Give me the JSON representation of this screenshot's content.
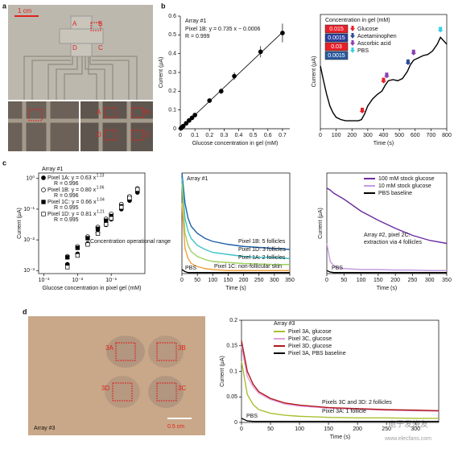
{
  "panel_labels": [
    "a",
    "b",
    "c",
    "d"
  ],
  "photos": [
    {
      "scale_label": "1 cm",
      "labels": [
        "A",
        "B",
        "D",
        "C",
        "A",
        "B",
        "D",
        "C"
      ]
    },
    {
      "labels": [
        "3A",
        "3B",
        "3D",
        "3C"
      ],
      "caption": "Array #3",
      "scale_label": "0.5 cm"
    }
  ],
  "watermark": {
    "brand": "电子发烧友",
    "url": "www.elecfans.com"
  },
  "chart_data": [
    {
      "type": "scatter",
      "annotations": [
        "Array #1",
        "Pixel 1B: y = 0.735 x − 0.0006",
        "R = 0.999"
      ],
      "x": [
        0.005,
        0.01,
        0.02,
        0.04,
        0.06,
        0.08,
        0.1,
        0.2,
        0.28,
        0.37,
        0.55,
        0.7
      ],
      "values": [
        0.003,
        0.007,
        0.014,
        0.029,
        0.044,
        0.058,
        0.073,
        0.15,
        0.2,
        0.28,
        0.41,
        0.51
      ],
      "errors": [
        0,
        0,
        0,
        0,
        0,
        0,
        0.005,
        0.01,
        0.015,
        0.02,
        0.03,
        0.05
      ],
      "color": "#000000",
      "fit": {
        "slope": 0.735,
        "intercept": -0.0006
      },
      "xlim": [
        0,
        0.75
      ],
      "ylim": [
        0,
        0.6
      ],
      "xticks": [
        0,
        0.1,
        0.2,
        0.3,
        0.4,
        0.5,
        0.6,
        0.7
      ],
      "yticks": [
        0,
        0.1,
        0.2,
        0.3,
        0.4,
        0.5,
        0.6
      ],
      "xlabel": "Glucose concentration in gel (mM)",
      "ylabel": "Current (μA)"
    },
    {
      "type": "line",
      "x": [
        0,
        20,
        40,
        60,
        80,
        100,
        130,
        160,
        200,
        240,
        260,
        280,
        300,
        330,
        360,
        390,
        410,
        430,
        460,
        490,
        520,
        550,
        570,
        590,
        620,
        650,
        680,
        710,
        740,
        760,
        780,
        800
      ],
      "values": [
        0.55,
        0.42,
        0.3,
        0.2,
        0.14,
        0.1,
        0.08,
        0.07,
        0.07,
        0.07,
        0.08,
        0.13,
        0.2,
        0.26,
        0.3,
        0.33,
        0.38,
        0.42,
        0.43,
        0.42,
        0.44,
        0.5,
        0.56,
        0.6,
        0.62,
        0.64,
        0.65,
        0.68,
        0.74,
        0.8,
        0.77,
        0.74
      ],
      "color": "#000000",
      "xlim": [
        0,
        800
      ],
      "ylim": [
        0,
        1
      ],
      "xticks": [
        0,
        100,
        200,
        300,
        400,
        500,
        600,
        700,
        800
      ],
      "xlabel": "Time (s)",
      "ylabel": "Current (μA)",
      "legend_title": "Concentration in gel (mM)",
      "concentrations": [
        0.015,
        0.0015,
        0.03,
        0.0015
      ],
      "concentration_colors": [
        "#e8202a",
        "#2a3f9e",
        "#e8202a",
        "#2a5a9e"
      ],
      "legend_items": [
        {
          "name": "Glucose",
          "color": "#e8202a"
        },
        {
          "name": "Acetaminophen",
          "color": "#2c4d9a"
        },
        {
          "name": "Ascorbic acid",
          "color": "#8a3fb0"
        },
        {
          "name": "PBS",
          "color": "#35d0e8"
        }
      ],
      "markers": [
        {
          "x": 265,
          "color": "#e8202a"
        },
        {
          "x": 400,
          "color": "#e8202a"
        },
        {
          "x": 420,
          "color": "#8a3fb0"
        },
        {
          "x": 555,
          "color": "#2c4d9a"
        },
        {
          "x": 590,
          "color": "#8a3fb0"
        },
        {
          "x": 760,
          "color": "#35d0e8"
        }
      ]
    },
    {
      "type": "scatter",
      "xscale": "log",
      "yscale": "log",
      "annotations": [
        "Array #1",
        "Concentration operational range"
      ],
      "x": [
        0.005,
        0.01,
        0.02,
        0.04,
        0.07,
        0.1,
        0.2,
        0.35,
        0.6
      ],
      "series": [
        {
          "name": "Pixel 1A: y = 0.63 x",
          "exponent": 1.13,
          "r_label": "R = 0.996",
          "marker": "circle",
          "filled": true,
          "color": "#000000",
          "values": [
            0.0016,
            0.0035,
            0.0076,
            0.017,
            0.031,
            0.047,
            0.1,
            0.19,
            0.35
          ]
        },
        {
          "name": "Pixel 1B: y = 0.80 x",
          "exponent": 1.06,
          "r_label": "R = 0.996",
          "marker": "circle",
          "filled": false,
          "color": "#000000",
          "values": [
            0.0029,
            0.0061,
            0.0127,
            0.026,
            0.048,
            0.07,
            0.145,
            0.26,
            0.47
          ]
        },
        {
          "name": "Pixel 1C: y = 0.66 x",
          "exponent": 1.04,
          "r_label": "R = 0.995",
          "marker": "square",
          "filled": true,
          "color": "#000000",
          "values": [
            0.0027,
            0.0055,
            0.0113,
            0.023,
            0.042,
            0.06,
            0.124,
            0.22,
            0.39
          ]
        },
        {
          "name": "Pixel 1D: y = 0.81 x",
          "exponent": 1.21,
          "r_label": "R = 0.995",
          "marker": "square",
          "filled": false,
          "color": "#000000",
          "values": [
            0.0013,
            0.0031,
            0.0071,
            0.016,
            0.032,
            0.05,
            0.115,
            0.23,
            0.44
          ]
        }
      ],
      "xlim": [
        0.0007,
        1
      ],
      "ylim": [
        0.0008,
        1.5
      ],
      "xticks": [
        {
          "value": 0.001,
          "label": "10⁻³"
        },
        {
          "value": 0.01,
          "label": "10⁻²"
        },
        {
          "value": 0.1,
          "label": "10⁻¹"
        }
      ],
      "yticks": [
        {
          "value": 0.001,
          "label": "10⁻³"
        },
        {
          "value": 0.01,
          "label": "10⁻²"
        },
        {
          "value": 0.1,
          "label": "10⁻¹"
        },
        {
          "value": 1,
          "label": "10⁰"
        }
      ],
      "xlabel": "Glucose concentration in pixel gel (mM)",
      "ylabel": "Current (μA)"
    },
    {
      "type": "line",
      "annotations": [
        "Array #1"
      ],
      "x": [
        0,
        10,
        20,
        30,
        50,
        75,
        100,
        150,
        200,
        250,
        300,
        350
      ],
      "series": [
        {
          "name": "Pixel 1B: 5 follicles",
          "color": "#1f5fa8",
          "values": [
            1,
            0.7,
            0.55,
            0.47,
            0.4,
            0.35,
            0.32,
            0.29,
            0.27,
            0.26,
            0.25,
            0.24
          ]
        },
        {
          "name": "Pixel 1D: 3 follicles",
          "color": "#3cc3c8",
          "values": [
            0.95,
            0.55,
            0.42,
            0.35,
            0.28,
            0.24,
            0.21,
            0.19,
            0.17,
            0.16,
            0.16,
            0.15
          ]
        },
        {
          "name": "Pixel 1A: 2 follicles",
          "color": "#9fd060",
          "values": [
            0.9,
            0.4,
            0.28,
            0.22,
            0.17,
            0.14,
            0.12,
            0.11,
            0.1,
            0.095,
            0.09,
            0.09
          ]
        },
        {
          "name": "Pixel 1C: non-follicular skin",
          "color": "#f0a040",
          "values": [
            0.7,
            0.25,
            0.15,
            0.1,
            0.07,
            0.05,
            0.04,
            0.03,
            0.03,
            0.03,
            0.03,
            0.03
          ]
        },
        {
          "name": "PBS",
          "color": "#000000",
          "values": [
            0.04,
            0.02,
            0.01,
            0.01,
            0.01,
            0.01,
            0.01,
            0.01,
            0.01,
            0.01,
            0.01,
            0.01
          ]
        }
      ],
      "xlim": [
        0,
        350
      ],
      "ylim": [
        0,
        1
      ],
      "xticks": [
        0,
        50,
        100,
        150,
        200,
        250,
        300,
        350
      ],
      "xlabel": "Time (s)"
    },
    {
      "type": "line",
      "annotations": [
        "Array #2, pixel 2C:",
        "extraction via 4 follicles",
        "PBS"
      ],
      "x": [
        0,
        10,
        20,
        30,
        50,
        75,
        100,
        150,
        200,
        250,
        300,
        350
      ],
      "series": [
        {
          "name": "100 mM stock glucose",
          "color": "#6a2ca0",
          "values": [
            0.85,
            0.83,
            0.8,
            0.78,
            0.74,
            0.68,
            0.62,
            0.53,
            0.45,
            0.38,
            0.33,
            0.3
          ]
        },
        {
          "name": "10 mM stock glucose",
          "color": "#c59ce0",
          "values": [
            0.3,
            0.12,
            0.08,
            0.06,
            0.05,
            0.045,
            0.04,
            0.04,
            0.035,
            0.035,
            0.03,
            0.03
          ]
        },
        {
          "name": "PBS baseline",
          "color": "#000000",
          "values": [
            0.03,
            0.015,
            0.01,
            0.01,
            0.01,
            0.01,
            0.01,
            0.01,
            0.01,
            0.01,
            0.01,
            0.01
          ]
        }
      ],
      "xlim": [
        0,
        350
      ],
      "ylim": [
        0,
        1
      ],
      "xticks": [
        0,
        50,
        100,
        150,
        200,
        250,
        300,
        350
      ],
      "xlabel": "Time (s)",
      "ylabel": "Current (μA)"
    },
    {
      "type": "line",
      "annotations": [
        "Array #3",
        "Pixels 3C and 3D: 2 follicles",
        "Pixel 3A: 1 follicle",
        "PBS"
      ],
      "x": [
        0,
        10,
        20,
        30,
        50,
        75,
        100,
        150,
        200,
        250,
        300,
        340
      ],
      "series": [
        {
          "name": "Pixel 3A, glucose",
          "color": "#a8c030",
          "values": [
            0.12,
            0.055,
            0.035,
            0.025,
            0.018,
            0.014,
            0.012,
            0.01,
            0.009,
            0.009,
            0.008,
            0.008
          ]
        },
        {
          "name": "Pixel 3C, glucose",
          "color": "#e0a0e0",
          "values": [
            0.15,
            0.09,
            0.07,
            0.057,
            0.045,
            0.036,
            0.032,
            0.028,
            0.026,
            0.024,
            0.023,
            0.022
          ]
        },
        {
          "name": "Pixel 3D, glucose",
          "color": "#b01818",
          "values": [
            0.16,
            0.1,
            0.075,
            0.06,
            0.047,
            0.038,
            0.034,
            0.029,
            0.027,
            0.025,
            0.024,
            0.023
          ]
        },
        {
          "name": "Pixel 3A, PBS baseline",
          "color": "#000000",
          "values": [
            0.008,
            0.003,
            0.002,
            0.002,
            0.002,
            0.002,
            0.002,
            0.002,
            0.002,
            0.002,
            0.002,
            0.002
          ]
        }
      ],
      "xlim": [
        0,
        340
      ],
      "ylim": [
        0,
        0.2
      ],
      "xticks": [
        0,
        50,
        100,
        150,
        200,
        250,
        300
      ],
      "yticks": [
        0,
        0.05,
        0.1,
        0.15,
        0.2
      ],
      "xlabel": "Time (s)",
      "ylabel": "Current (μA)"
    }
  ]
}
